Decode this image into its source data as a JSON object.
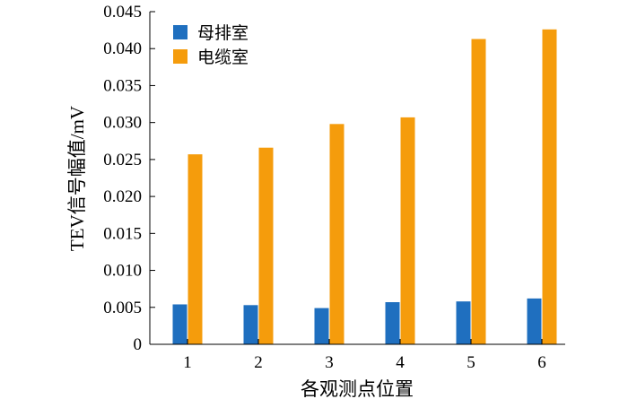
{
  "chart_data": {
    "type": "bar",
    "xlabel": "各观测点位置",
    "ylabel": "TEV信号幅值/mV",
    "categories": [
      "1",
      "2",
      "3",
      "4",
      "5",
      "6"
    ],
    "ylim": [
      0,
      0.045
    ],
    "yticks": [
      "0",
      "0.005",
      "0.010",
      "0.015",
      "0.020",
      "0.025",
      "0.030",
      "0.035",
      "0.040",
      "0.045"
    ],
    "grid": false,
    "legend_position": "top-left",
    "series": [
      {
        "name": "母排室",
        "color": "#1f6fbf",
        "values": [
          0.0054,
          0.0053,
          0.0049,
          0.0057,
          0.0058,
          0.0062
        ]
      },
      {
        "name": "电缆室",
        "color": "#f59c0c",
        "values": [
          0.0257,
          0.0266,
          0.0298,
          0.0307,
          0.0413,
          0.0426
        ]
      }
    ]
  }
}
